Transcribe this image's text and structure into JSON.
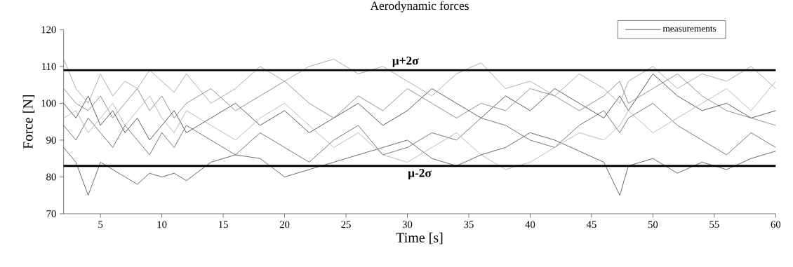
{
  "chart_data": {
    "type": "line",
    "title": "Aerodynamic forces",
    "xlabel": "Time [s]",
    "ylabel": "Force [N]",
    "xlim": [
      2,
      60
    ],
    "ylim": [
      70,
      120
    ],
    "xticks": [
      5,
      10,
      15,
      20,
      25,
      30,
      35,
      40,
      45,
      50,
      55,
      60
    ],
    "yticks": [
      70,
      80,
      90,
      100,
      110,
      120
    ],
    "grid": false,
    "legend": "top right",
    "marker": "none",
    "line_style": "solid",
    "ref_lines": [
      {
        "axis": "y",
        "value": 109,
        "label": "μ+2σ",
        "color": "#000000"
      },
      {
        "axis": "y",
        "value": 83,
        "label": "μ-2σ",
        "color": "#000000"
      }
    ],
    "series": [
      {
        "name": "measurements",
        "color": "#333333",
        "x": [
          2,
          3,
          4,
          5,
          6,
          7,
          8,
          9,
          10,
          11,
          12,
          14,
          16,
          18,
          20,
          22,
          24,
          26,
          28,
          30,
          32,
          34,
          36,
          38,
          40,
          42,
          44,
          46,
          47.3,
          48,
          50,
          52,
          54,
          56,
          58,
          60
        ],
        "values": [
          100,
          96,
          102,
          94,
          98,
          92,
          96,
          90,
          94,
          98,
          92,
          96,
          100,
          94,
          98,
          92,
          96,
          100,
          94,
          98,
          104,
          100,
          96,
          102,
          98,
          104,
          100,
          96,
          102,
          98,
          108,
          102,
          98,
          100,
          96,
          98
        ]
      },
      {
        "color": "#444444",
        "x": [
          2,
          3,
          4,
          5,
          6,
          7,
          8,
          9,
          10,
          11,
          12,
          14,
          16,
          18,
          20,
          22,
          24,
          26,
          28,
          30,
          32,
          34,
          36,
          38,
          40,
          42,
          44,
          46,
          47.3,
          48,
          50,
          52,
          54,
          56,
          58,
          60
        ],
        "values": [
          88,
          84,
          75,
          84,
          82,
          80,
          78,
          81,
          80,
          81,
          79,
          84,
          86,
          85,
          80,
          82,
          84,
          86,
          88,
          90,
          85,
          83,
          86,
          88,
          92,
          90,
          87,
          84,
          75,
          83,
          85,
          81,
          84,
          82,
          85,
          87
        ]
      },
      {
        "color": "#999999",
        "x": [
          2,
          3,
          4,
          5,
          6,
          7,
          8,
          9,
          10,
          11,
          12,
          14,
          16,
          18,
          20,
          22,
          24,
          26,
          28,
          30,
          32,
          34,
          36,
          38,
          40,
          42,
          44,
          46,
          47.3,
          48,
          50,
          52,
          54,
          56,
          58,
          60
        ],
        "values": [
          112,
          104,
          100,
          108,
          102,
          106,
          104,
          109,
          106,
          103,
          108,
          100,
          104,
          110,
          106,
          110,
          112,
          108,
          110,
          106,
          102,
          108,
          111,
          104,
          106,
          102,
          108,
          104,
          100,
          106,
          110,
          104,
          108,
          106,
          110,
          104
        ]
      },
      {
        "color": "#555555",
        "x": [
          2,
          3,
          4,
          5,
          6,
          7,
          8,
          9,
          10,
          11,
          12,
          14,
          16,
          18,
          20,
          22,
          24,
          26,
          28,
          30,
          32,
          34,
          36,
          38,
          40,
          42,
          44,
          46,
          47.3,
          48,
          50,
          52,
          54,
          56,
          58,
          60
        ],
        "values": [
          94,
          90,
          96,
          92,
          88,
          94,
          90,
          86,
          92,
          88,
          94,
          90,
          86,
          92,
          88,
          84,
          90,
          94,
          86,
          88,
          92,
          90,
          96,
          94,
          90,
          88,
          94,
          98,
          92,
          96,
          100,
          94,
          90,
          86,
          92,
          88
        ]
      },
      {
        "color": "#777777",
        "x": [
          2,
          3,
          4,
          5,
          6,
          7,
          8,
          9,
          10,
          11,
          12,
          14,
          16,
          18,
          20,
          22,
          24,
          26,
          28,
          30,
          32,
          34,
          36,
          38,
          40,
          42,
          44,
          46,
          47.3,
          48,
          50,
          52,
          54,
          56,
          58,
          60
        ],
        "values": [
          104,
          100,
          98,
          102,
          96,
          100,
          104,
          98,
          102,
          96,
          100,
          104,
          98,
          102,
          106,
          100,
          96,
          102,
          98,
          104,
          100,
          96,
          100,
          98,
          104,
          102,
          98,
          102,
          106,
          100,
          104,
          108,
          102,
          98,
          96,
          94
        ]
      },
      {
        "color": "#aaaaaa",
        "x": [
          2,
          3,
          4,
          5,
          6,
          7,
          8,
          9,
          10,
          11,
          12,
          14,
          16,
          18,
          20,
          22,
          24,
          26,
          28,
          30,
          32,
          34,
          36,
          38,
          40,
          42,
          44,
          46,
          47.3,
          48,
          50,
          52,
          54,
          56,
          58,
          60
        ],
        "values": [
          96,
          98,
          92,
          96,
          100,
          94,
          98,
          102,
          96,
          92,
          98,
          94,
          90,
          96,
          100,
          94,
          88,
          92,
          86,
          84,
          88,
          92,
          86,
          82,
          84,
          88,
          92,
          90,
          94,
          98,
          92,
          96,
          100,
          104,
          98,
          106
        ]
      }
    ]
  }
}
